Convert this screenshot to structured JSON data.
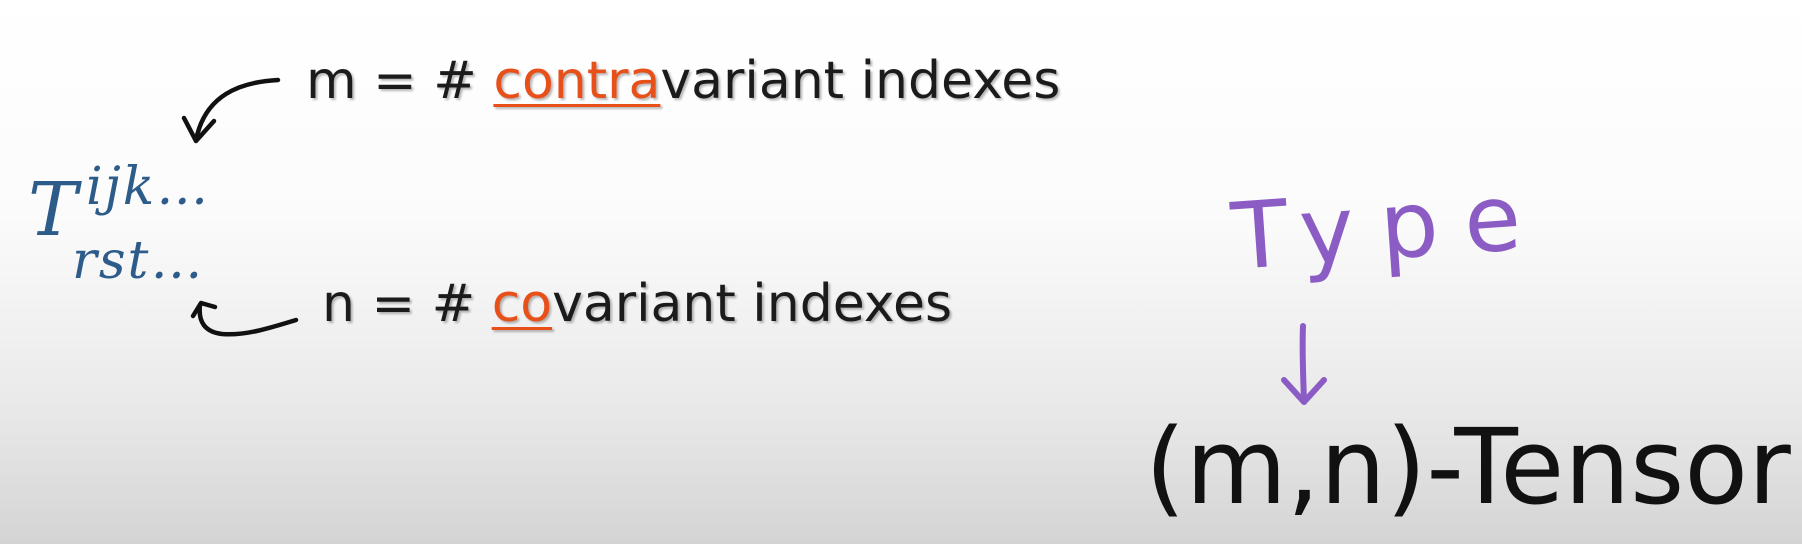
{
  "tensor": {
    "base": "T",
    "superscript": "ijk…",
    "subscript": "rst…"
  },
  "contravariant": {
    "prefix": "m = # ",
    "highlight": "contra",
    "suffix": "variant indexes"
  },
  "covariant": {
    "prefix": "n = # ",
    "highlight": "co",
    "suffix": "variant indexes"
  },
  "type_annotation": "Type",
  "tensor_type": "(m,n)-Tensor",
  "colors": {
    "tensor_blue": "#2e5c8a",
    "highlight_orange": "#e8501a",
    "handwriting_purple": "#8b5cc4",
    "text_black": "#1b1b1b"
  },
  "icons": [
    "curved-arrow-icon",
    "hook-arrow-icon",
    "down-arrow-icon"
  ]
}
